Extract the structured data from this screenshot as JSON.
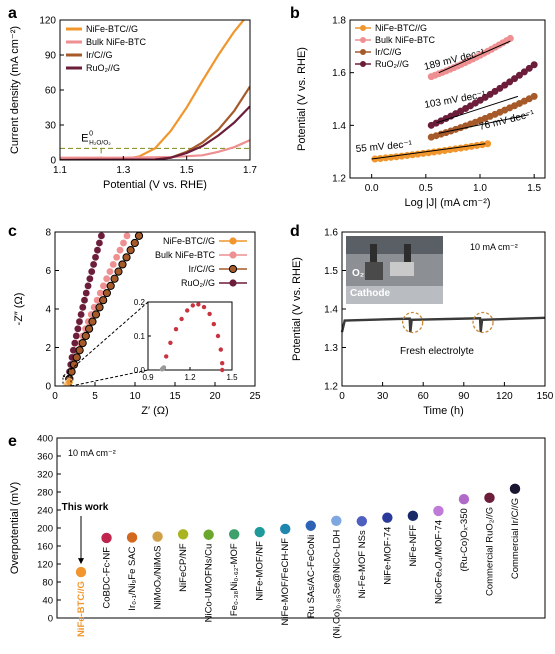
{
  "colors": {
    "nife": "#f0962d",
    "bulk": "#ee8f91",
    "irc": "#a65a2a",
    "ruo2": "#6b1d3a",
    "dash": "#7f8a1c",
    "inset": "#c8333f",
    "gray": "#999999"
  },
  "panels": {
    "a": "a",
    "b": "b",
    "c": "c",
    "d": "d",
    "e": "e"
  },
  "chart_data": [
    {
      "type": "line",
      "panel": "a",
      "xlabel": "Potential (V vs. RHE)",
      "ylabel": "Current density (mA cm⁻²)",
      "xlim": [
        1.1,
        1.7
      ],
      "ylim": [
        0,
        120
      ],
      "xticks": [
        "1.1",
        "1.3",
        "1.5",
        "1.7"
      ],
      "yticks": [
        "0",
        "30",
        "60",
        "90",
        "120"
      ],
      "annotation": {
        "main": "E",
        "sup": "0",
        "sub": "H₂O/O₂",
        "x": 1.23,
        "y": 10
      },
      "legend_position": "top-left",
      "series": [
        {
          "name": "NiFe-BTC//G",
          "color": "#f0962d",
          "points": [
            [
              1.1,
              0
            ],
            [
              1.3,
              0.5
            ],
            [
              1.35,
              3
            ],
            [
              1.4,
              10
            ],
            [
              1.45,
              25
            ],
            [
              1.5,
              45
            ],
            [
              1.55,
              68
            ],
            [
              1.6,
              90
            ],
            [
              1.65,
              110
            ],
            [
              1.68,
              120
            ]
          ]
        },
        {
          "name": "Bulk NiFe-BTC",
          "color": "#ee8f91",
          "points": [
            [
              1.1,
              2
            ],
            [
              1.3,
              2
            ],
            [
              1.45,
              2.5
            ],
            [
              1.55,
              4
            ],
            [
              1.6,
              7
            ],
            [
              1.65,
              11
            ],
            [
              1.7,
              17
            ]
          ]
        },
        {
          "name": "Ir/C//G",
          "color": "#a65a2a",
          "points": [
            [
              1.1,
              0
            ],
            [
              1.4,
              0.5
            ],
            [
              1.45,
              2
            ],
            [
              1.5,
              7
            ],
            [
              1.55,
              15
            ],
            [
              1.6,
              26
            ],
            [
              1.65,
              42
            ],
            [
              1.7,
              63
            ]
          ]
        },
        {
          "name": "RuO₂//G",
          "color": "#6b1d3a",
          "points": [
            [
              1.1,
              0
            ],
            [
              1.4,
              0.5
            ],
            [
              1.45,
              2
            ],
            [
              1.5,
              6
            ],
            [
              1.55,
              12
            ],
            [
              1.6,
              21
            ],
            [
              1.65,
              32
            ],
            [
              1.7,
              46
            ]
          ]
        }
      ]
    },
    {
      "type": "line",
      "panel": "b",
      "xlabel": "Log |J| (mA cm⁻²)",
      "ylabel": "Potential (V vs. RHE)",
      "xlim": [
        -0.2,
        1.6
      ],
      "ylim": [
        1.2,
        1.8
      ],
      "xticks": [
        "0.0",
        "0.5",
        "1.0",
        "1.5"
      ],
      "yticks": [
        "1.2",
        "1.4",
        "1.6",
        "1.8"
      ],
      "legend_position": "top-left",
      "annotations": [
        "189 mV dec⁻¹",
        "103 mV dec⁻¹",
        "76 mV dec⁻¹",
        "55 mV dec⁻¹"
      ],
      "series": [
        {
          "name": "NiFe-BTC//G",
          "color": "#f0962d",
          "x_range": [
            0.03,
            1.07
          ],
          "y_range": [
            1.272,
            1.33
          ],
          "curve": "up"
        },
        {
          "name": "Bulk NiFe-BTC",
          "color": "#ee8f91",
          "x_range": [
            0.55,
            1.28
          ],
          "y_range": [
            1.585,
            1.73
          ],
          "curve": "up"
        },
        {
          "name": "Ir/C//G",
          "color": "#a65a2a",
          "x_range": [
            0.55,
            1.5
          ],
          "y_range": [
            1.355,
            1.51
          ],
          "curve": "up"
        },
        {
          "name": "RuO₂//G",
          "color": "#6b1d3a",
          "x_range": [
            0.55,
            1.5
          ],
          "y_range": [
            1.4,
            1.63
          ],
          "curve": "up"
        }
      ],
      "fit_lines": [
        {
          "x": [
            0.62,
            1.28
          ],
          "y": [
            1.6,
            1.72
          ]
        },
        {
          "x": [
            0.6,
            1.35
          ],
          "y": [
            1.41,
            1.51
          ]
        },
        {
          "x": [
            0.62,
            1.45
          ],
          "y": [
            1.37,
            1.44
          ]
        },
        {
          "x": [
            0.0,
            1.05
          ],
          "y": [
            1.272,
            1.33
          ]
        }
      ]
    },
    {
      "type": "scatter",
      "panel": "c",
      "xlabel": "Z′ (Ω)",
      "ylabel": "-Z″ (Ω)",
      "xlim": [
        0,
        25
      ],
      "ylim": [
        0,
        8
      ],
      "xticks": [
        "0",
        "5",
        "10",
        "15",
        "20",
        "25"
      ],
      "yticks": [
        "0",
        "2",
        "4",
        "6",
        "8"
      ],
      "legend_position": "top-right",
      "series": [
        {
          "name": "NiFe-BTC//G",
          "color": "#f0962d",
          "x_range": [
            1.4,
            1.8
          ],
          "y_range": [
            0,
            0.2
          ]
        },
        {
          "name": "Bulk NiFe-BTC",
          "color": "#ee8f91",
          "x_range": [
            1.6,
            9
          ],
          "y_range": [
            0,
            7.8
          ]
        },
        {
          "name": "Ir/C//G",
          "color": "#a65a2a",
          "x_range": [
            1.6,
            10.5
          ],
          "y_range": [
            0,
            7.8
          ]
        },
        {
          "name": "RuO₂//G",
          "color": "#6b1d3a",
          "x_range": [
            1.6,
            5.8
          ],
          "y_range": [
            0,
            7.8
          ]
        }
      ],
      "inset": {
        "xlim": [
          0.9,
          1.5
        ],
        "ylim": [
          0,
          0.2
        ],
        "xticks": [
          "0.9",
          "1.2",
          "1.5"
        ],
        "yticks": [
          "0.0",
          "0.1",
          "0.2"
        ],
        "points": [
          [
            1.01,
            0.005
          ],
          [
            1.03,
            0.04
          ],
          [
            1.06,
            0.08
          ],
          [
            1.1,
            0.12
          ],
          [
            1.14,
            0.15
          ],
          [
            1.18,
            0.175
          ],
          [
            1.22,
            0.19
          ],
          [
            1.26,
            0.193
          ],
          [
            1.3,
            0.185
          ],
          [
            1.34,
            0.165
          ],
          [
            1.37,
            0.135
          ],
          [
            1.4,
            0.1
          ],
          [
            1.42,
            0.06
          ],
          [
            1.43,
            0.02
          ],
          [
            1.43,
            0.0
          ]
        ]
      }
    },
    {
      "type": "line",
      "panel": "d",
      "xlabel": "Time (h)",
      "ylabel": "Potential (V vs. RHE)",
      "xlim": [
        0,
        150
      ],
      "ylim": [
        1.2,
        1.6
      ],
      "xticks": [
        "0",
        "30",
        "60",
        "90",
        "120",
        "150"
      ],
      "yticks": [
        "1.2",
        "1.3",
        "1.4",
        "1.5",
        "1.6"
      ],
      "label_current": "10 mA cm⁻²",
      "photo_labels": {
        "gas": "O₂",
        "electrode": "Cathode"
      },
      "annotation": "Fresh electrolyte",
      "events_h": [
        50,
        102
      ],
      "series": [
        {
          "name": "",
          "color": "#3a3a3a",
          "points": [
            [
              0,
              1.34
            ],
            [
              2,
              1.37
            ],
            [
              50,
              1.375
            ],
            [
              50.5,
              1.34
            ],
            [
              51.5,
              1.372
            ],
            [
              102,
              1.376
            ],
            [
              102.5,
              1.34
            ],
            [
              103.5,
              1.372
            ],
            [
              150,
              1.377
            ]
          ]
        }
      ]
    },
    {
      "type": "scatter",
      "panel": "e",
      "ylabel": "Overpotential (mV)",
      "ylim": [
        0,
        400
      ],
      "yticks": [
        "0",
        "40",
        "80",
        "120",
        "160",
        "200",
        "240",
        "280",
        "320",
        "360",
        "400"
      ],
      "label_current": "10 mA cm⁻²",
      "highlight": "This work",
      "categories": [
        {
          "label": "NiFe-BTC//G",
          "value": 102,
          "color": "#f0962d"
        },
        {
          "label": "CoBDC-Fc-NF",
          "value": 178,
          "color": "#c0254e"
        },
        {
          "label": "Ir₀.₁/Ni₉Fe SAC",
          "value": 179,
          "color": "#d2691e"
        },
        {
          "label": "NiMoOₓ/NiMoS",
          "value": 181,
          "color": "#cfa046"
        },
        {
          "label": "NiFeCP/NF",
          "value": 186,
          "color": "#a8b420"
        },
        {
          "label": "NiCo-UMOFNs/Cu",
          "value": 185,
          "color": "#6aa72e"
        },
        {
          "label": "Fe₀.₃₈Ni₀.₆₂-MOF",
          "value": 186,
          "color": "#3ea06a"
        },
        {
          "label": "NiFe-MOF/NF",
          "value": 191,
          "color": "#1f9a9a"
        },
        {
          "label": "NiFe-MOF/FeCH-NF",
          "value": 198,
          "color": "#1f86b0"
        },
        {
          "label": "Ru SAs/AC-FeCoNi",
          "value": 205,
          "color": "#2c63b5"
        },
        {
          "label": "(Ni,Co)₀.₈₅Se@NiCo-LDH",
          "value": 216,
          "color": "#7fa7e0"
        },
        {
          "label": "Ni-Fe-MOF NSs",
          "value": 215,
          "color": "#4f5fc0"
        },
        {
          "label": "NiFe-MOF-74",
          "value": 223,
          "color": "#2a3a9a"
        },
        {
          "label": "NiFe-NFF",
          "value": 227,
          "color": "#182a6a"
        },
        {
          "label": "NiCoFeₓO₄/MOF-74",
          "value": 238,
          "color": "#c07ad8"
        },
        {
          "label": "(Ru-Co)Oₓ-350",
          "value": 264,
          "color": "#b06ac8"
        },
        {
          "label": "Commercial RuO₂//G",
          "value": 267,
          "color": "#6b1d3a"
        },
        {
          "label": "Commercial Ir/C//G",
          "value": 287,
          "color": "#1a1530"
        }
      ]
    }
  ]
}
